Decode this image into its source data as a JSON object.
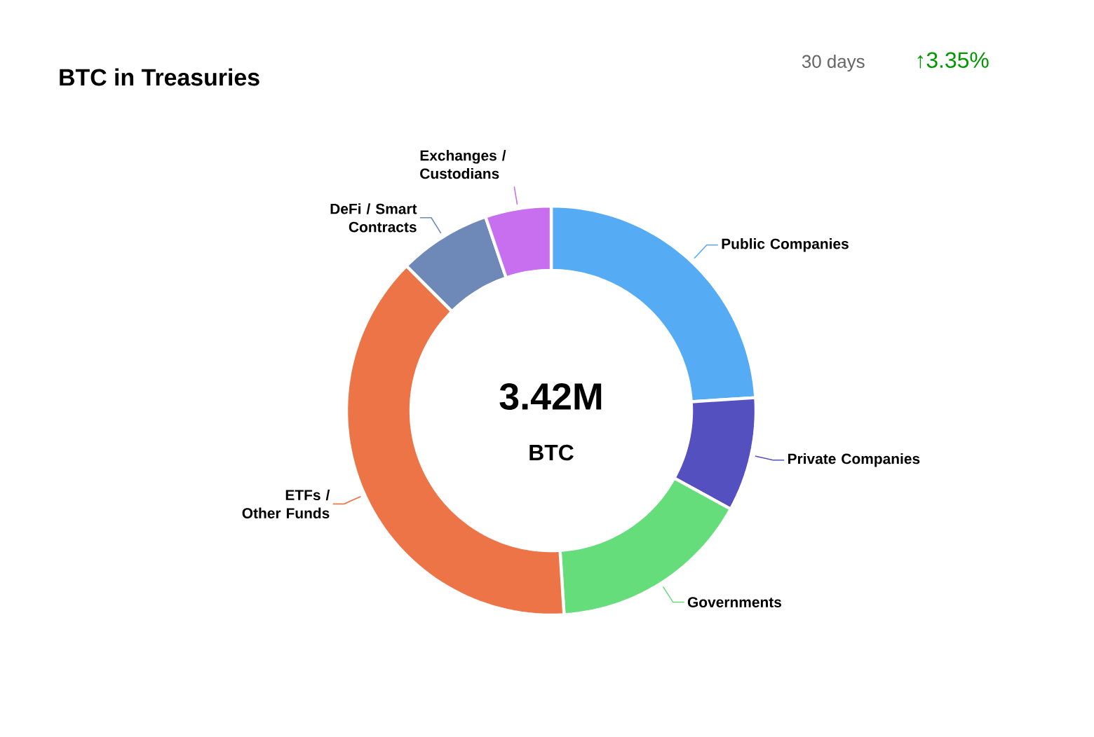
{
  "chart_data": {
    "type": "donut",
    "title": "BTC in Treasuries",
    "categories": [
      "Public Companies",
      "Private Companies",
      "Governments",
      "ETFs / Other Funds",
      "DeFi / Smart Contracts",
      "Exchanges / Custodians"
    ],
    "values": [
      24,
      9,
      16,
      38.5,
      7.3,
      5.2
    ],
    "colors": [
      "#56acf4",
      "#5450c0",
      "#66dd7b",
      "#ec7446",
      "#6e88b8",
      "#c86ff0"
    ],
    "annotations": [
      "3.42M",
      "BTC",
      "30 days",
      "↑3.35%"
    ]
  }
}
